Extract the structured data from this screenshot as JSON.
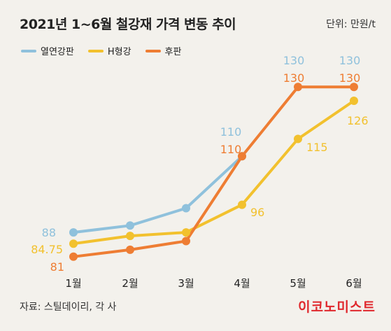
{
  "header": {
    "title": "2021년 1~6월 철강재 가격 변동 추이",
    "unit": "단위: 만원/t"
  },
  "footer": {
    "source": "자료: 스틸데이리, 각 사",
    "brand": "이코노미스트"
  },
  "colors": {
    "background": "#f3f1ec",
    "hot_rolled": "#8fc1dc",
    "h_beam": "#f2c12e",
    "plate": "#ee7d33",
    "brand": "#e0282d"
  },
  "chart_data": {
    "type": "line",
    "title": "2021년 1~6월 철강재 가격 변동 추이",
    "unit": "단위: 만원/t",
    "categories": [
      "1월",
      "2월",
      "3월",
      "4월",
      "5월",
      "6월"
    ],
    "legend_position": "top-left",
    "grid": false,
    "series": [
      {
        "name": "열연강판",
        "color": "#8fc1dc",
        "values": [
          88,
          90,
          95,
          110,
          null,
          null
        ],
        "labels": [
          "88",
          null,
          null,
          "110",
          "130",
          "130"
        ]
      },
      {
        "name": "H형강",
        "color": "#f2c12e",
        "values": [
          84.75,
          87,
          88,
          96,
          115,
          126
        ],
        "labels": [
          "84.75",
          null,
          null,
          "96",
          "115",
          "126"
        ]
      },
      {
        "name": "후판",
        "color": "#ee7d33",
        "values": [
          81,
          83,
          85.5,
          110,
          130,
          130
        ],
        "labels": [
          "81",
          null,
          null,
          "110",
          "130",
          "130"
        ]
      }
    ]
  }
}
